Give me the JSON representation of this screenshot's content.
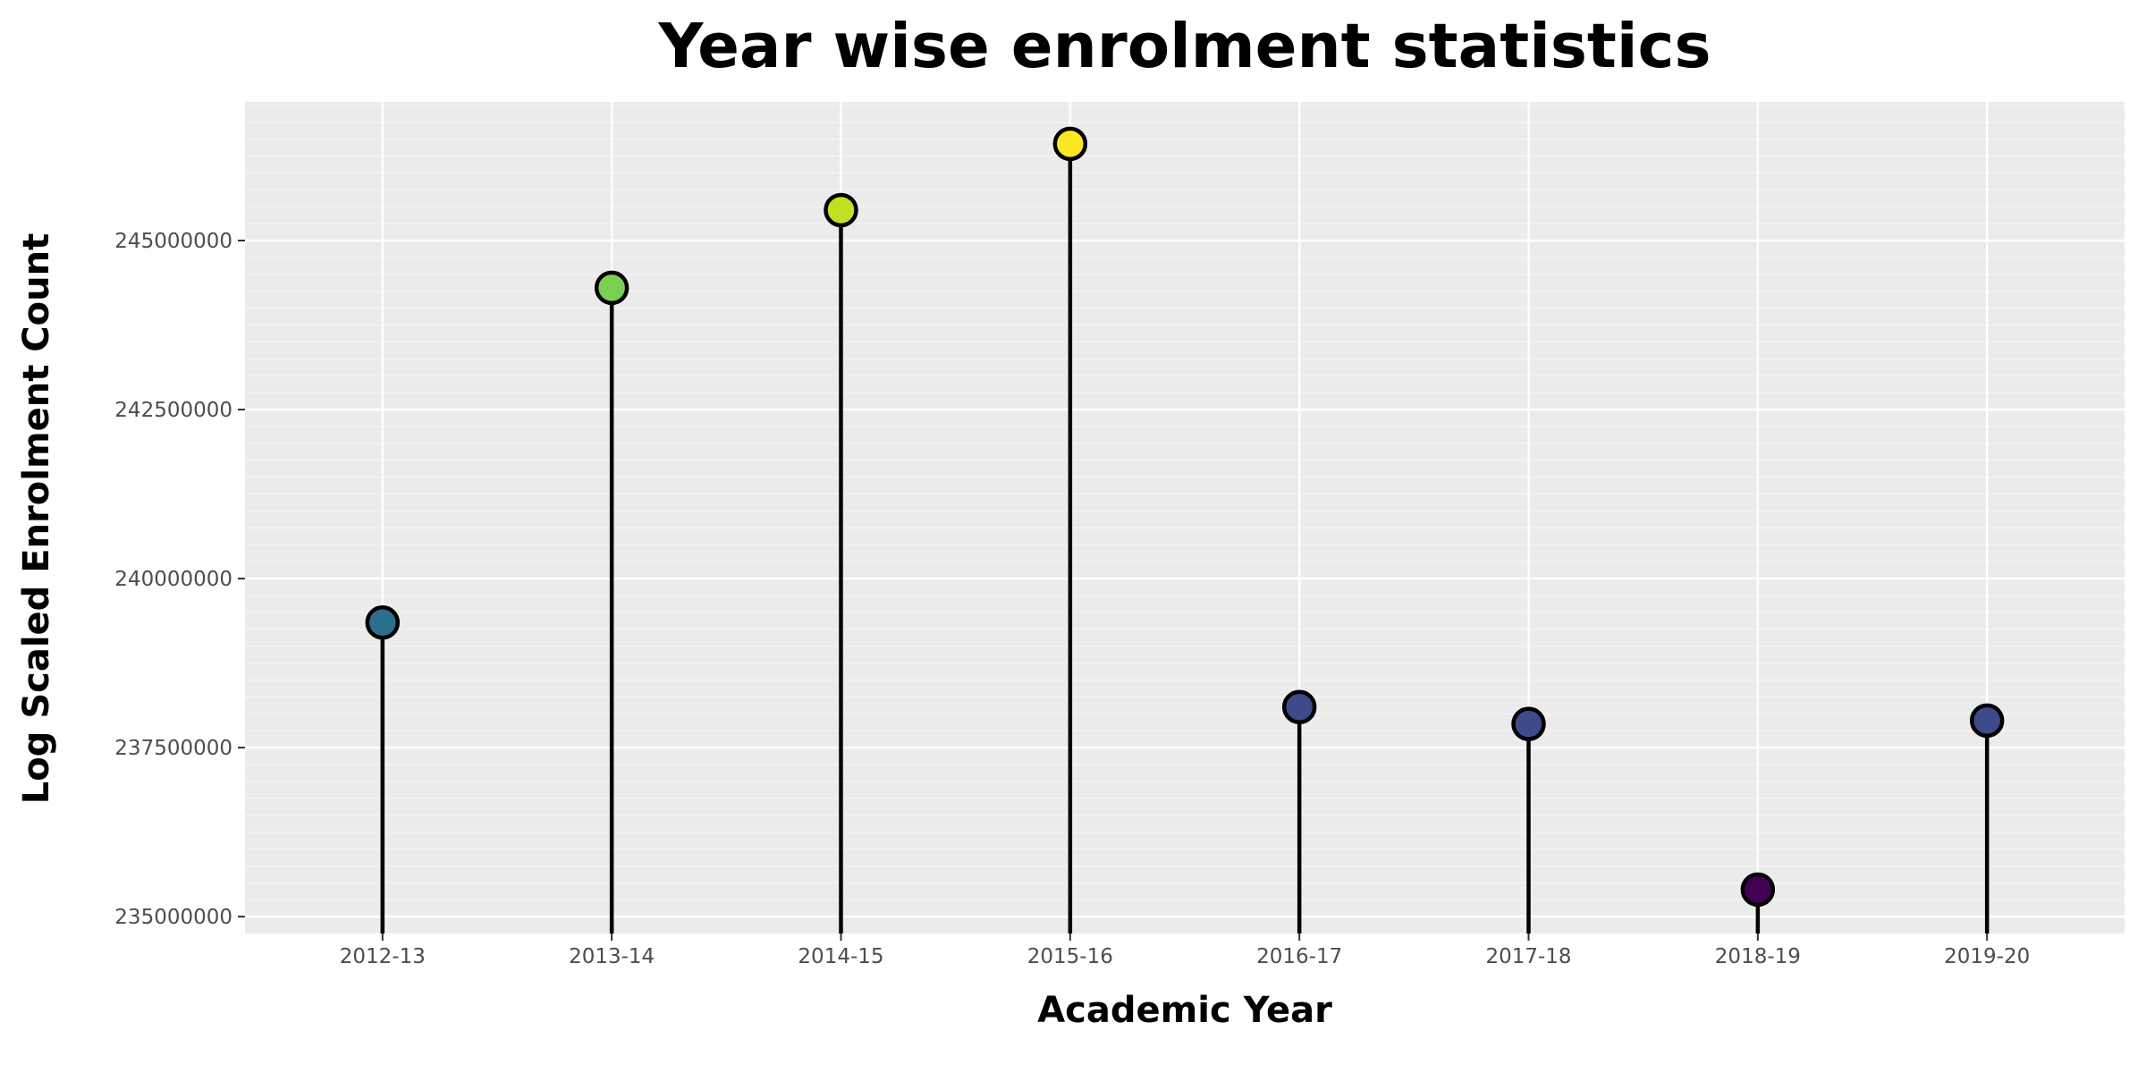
{
  "chart_data": {
    "type": "lollipop",
    "title": "Year wise enrolment statistics",
    "xlabel": "Academic Year",
    "ylabel": "Log Scaled Enrolment Count",
    "categories": [
      "2012-13",
      "2013-14",
      "2014-15",
      "2015-16",
      "2016-17",
      "2017-18",
      "2018-19",
      "2019-20"
    ],
    "values": [
      239350000,
      244300000,
      245450000,
      246430000,
      238100000,
      237850000,
      235400000,
      237900000
    ],
    "colors": [
      "#2c6e8e",
      "#7ad151",
      "#c2df23",
      "#fde725",
      "#3e4a89",
      "#3e4a89",
      "#440154",
      "#3e4a89"
    ],
    "ylim": [
      234750000,
      247050000
    ],
    "ytick_values": [
      235000000,
      237500000,
      240000000,
      242500000,
      245000000
    ],
    "ytick_labels": [
      "235000000",
      "237500000",
      "240000000",
      "242500000",
      "245000000"
    ],
    "background": "#ebebeb",
    "grid": true,
    "legend": "none"
  }
}
